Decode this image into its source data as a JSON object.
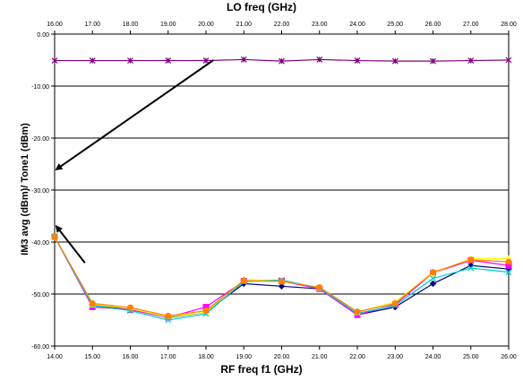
{
  "chart_data": {
    "type": "line",
    "title": "",
    "top_axis": {
      "label": "LO freq (GHz)",
      "ticks": [
        "16.00",
        "17.00",
        "18.00",
        "19.00",
        "20.00",
        "21.00",
        "22.00",
        "23.00",
        "24.00",
        "25.00",
        "26.00",
        "27.00",
        "28.00"
      ]
    },
    "xlabel": "RF freq f1 (GHz)",
    "ylabel": "IM3 avg (dBm)/ Tone1 (dBm)",
    "x_ticks": [
      "14.00",
      "15.00",
      "16.00",
      "17.00",
      "18.00",
      "19.00",
      "20.00",
      "21.00",
      "22.00",
      "23.00",
      "24.00",
      "25.00",
      "26.00"
    ],
    "y_ticks": [
      "0.00",
      "-10.00",
      "-20.00",
      "-30.00",
      "-40.00",
      "-50.00",
      "-60.00"
    ],
    "xlim": [
      14,
      26
    ],
    "ylim": [
      -60,
      0
    ],
    "grid": "horizontal",
    "legend": "none",
    "x": [
      14,
      15,
      16,
      17,
      18,
      19,
      20,
      21,
      22,
      23,
      24,
      25,
      26
    ],
    "series": [
      {
        "marker": "diamond",
        "color": "#000080",
        "values": [
          -39,
          -52,
          -53,
          -54.5,
          -53.5,
          -48,
          -48.5,
          -49,
          -54,
          -52.5,
          -48,
          -44.5,
          -45.2
        ]
      },
      {
        "marker": "square",
        "color": "#ff00ff",
        "values": [
          -39,
          -52.5,
          -53,
          -54.5,
          -52.5,
          -47.5,
          -47.5,
          -49,
          -54,
          -52,
          -46,
          -43.5,
          -44.5
        ]
      },
      {
        "marker": "triangle",
        "color": "#ffff00",
        "values": [
          -39,
          -52,
          -52.8,
          -54.4,
          -53.5,
          -47.2,
          -47.4,
          -48.8,
          -53.5,
          -51.5,
          -46,
          -43.2,
          -43.2
        ]
      },
      {
        "marker": "x",
        "color": "#00cccc",
        "values": [
          -39,
          -52.2,
          -53.2,
          -55,
          -53.8,
          -47.6,
          -47.3,
          -48.9,
          -53.7,
          -52.2,
          -47,
          -45,
          -45.8
        ]
      },
      {
        "marker": "circle",
        "color": "#ff8000",
        "values": [
          -39,
          -51.8,
          -52.6,
          -54.2,
          -53.2,
          -47.4,
          -47.6,
          -48.7,
          -53.4,
          -51.8,
          -45.8,
          -43.4,
          -43.8
        ]
      },
      {
        "marker": "star",
        "color": "#800080",
        "values": [
          -5.1,
          -5.1,
          -5.1,
          -5.1,
          -5.1,
          -4.9,
          -5.2,
          -4.9,
          -5.1,
          -5.2,
          -5.2,
          -5.1,
          -5
        ]
      }
    ],
    "annotations": [
      {
        "type": "arrow",
        "from": [
          18.2,
          -5
        ],
        "to": [
          14.05,
          -26
        ]
      },
      {
        "type": "arrow",
        "from": [
          14.8,
          -44
        ],
        "to": [
          14.05,
          -37
        ]
      }
    ]
  }
}
